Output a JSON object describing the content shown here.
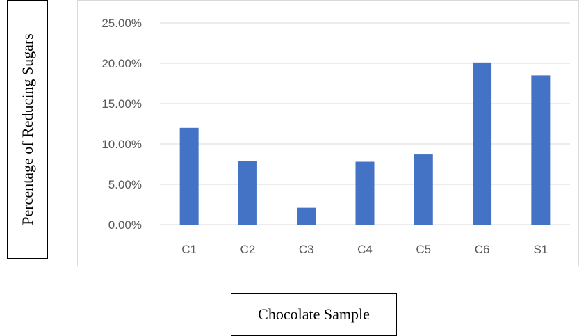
{
  "chart_data": {
    "type": "bar",
    "categories": [
      "C1",
      "C2",
      "C3",
      "C4",
      "C5",
      "C6",
      "S1"
    ],
    "values": [
      12.0,
      7.9,
      2.1,
      7.8,
      8.7,
      20.1,
      18.5
    ],
    "xlabel": "Chocolate Sample",
    "ylabel": "Percentage of Reducing Sugars",
    "ylim": [
      0,
      25
    ],
    "yticks": [
      0,
      5,
      10,
      15,
      20,
      25
    ],
    "ytick_labels": [
      "0.00%",
      "5.00%",
      "10.00%",
      "15.00%",
      "20.00%",
      "25.00%"
    ],
    "grid": true,
    "legend": "none",
    "bar_color": "#4472c4",
    "grid_color": "#d9d9d9",
    "text_color": "#595959"
  }
}
